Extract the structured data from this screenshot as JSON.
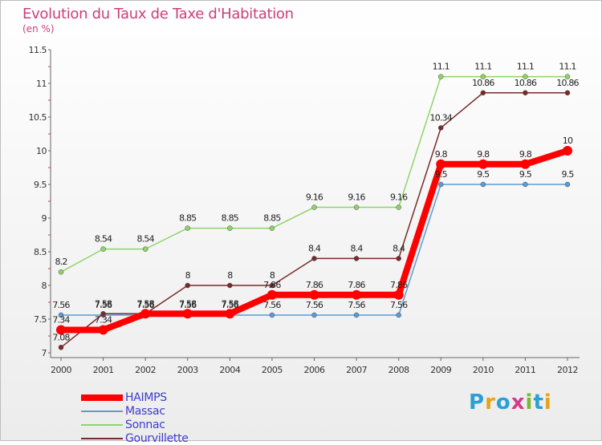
{
  "title": "Evolution du Taux de Taxe d'Habitation",
  "subtitle": "(en %)",
  "logo": {
    "letters": [
      "P",
      "r",
      "o",
      "x",
      "i",
      "t",
      "i"
    ],
    "colors": [
      "#2b9fd6",
      "#e8a317",
      "#2b9fd6",
      "#d23c8c",
      "#7cb82f",
      "#2b9fd6",
      "#e8a317"
    ]
  },
  "chart_data": {
    "type": "line",
    "x": [
      "2000",
      "2001",
      "2002",
      "2003",
      "2004",
      "2005",
      "2006",
      "2007",
      "2008",
      "2009",
      "2010",
      "2011",
      "2012"
    ],
    "ylim": [
      7,
      11.5
    ],
    "yticks": [
      "7",
      "7.5",
      "8",
      "8.5",
      "9",
      "9.5",
      "10",
      "10.5",
      "11",
      "11.5"
    ],
    "grid": false,
    "legend": "bottom-left",
    "series": [
      {
        "name": "Massac",
        "color": "#5b9bd5",
        "values": [
          7.56,
          7.56,
          7.56,
          7.56,
          7.56,
          7.56,
          7.56,
          7.56,
          7.56,
          9.5,
          9.5,
          9.5,
          9.5
        ],
        "labels": [
          "7.56",
          "7.56",
          "7.56",
          "7.56",
          "7.56",
          "7.56",
          "7.56",
          "7.56",
          "7.56",
          "9.5",
          "9.5",
          "9.5",
          "9.5"
        ]
      },
      {
        "name": "Sonnac",
        "color": "#8fd46b",
        "values": [
          8.2,
          8.54,
          8.54,
          8.85,
          8.85,
          8.85,
          9.16,
          9.16,
          9.16,
          11.1,
          11.1,
          11.1,
          11.1
        ],
        "labels": [
          "8.2",
          "8.54",
          "8.54",
          "8.85",
          "8.85",
          "8.85",
          "9.16",
          "9.16",
          "9.16",
          "11.1",
          "11.1",
          "11.1",
          "11.1"
        ]
      },
      {
        "name": "Gourvillette",
        "color": "#7a2a2a",
        "values": [
          7.08,
          7.58,
          7.58,
          8,
          8,
          8,
          8.4,
          8.4,
          8.4,
          10.34,
          10.86,
          10.86,
          10.86
        ],
        "labels": [
          "7.08",
          "7.58",
          "7.58",
          "8",
          "8",
          "8",
          "8.4",
          "8.4",
          "8.4",
          "10.34",
          "10.86",
          "10.86",
          "10.86"
        ]
      },
      {
        "name": "HAIMPS",
        "color": "#ff0000",
        "values": [
          7.34,
          7.34,
          7.58,
          7.58,
          7.58,
          7.86,
          7.86,
          7.86,
          7.86,
          9.8,
          9.8,
          9.8,
          10
        ],
        "labels": [
          "7.34",
          "7.34",
          "7.58",
          "7.58",
          "7.58",
          "7.86",
          "7.86",
          "7.86",
          "7.86",
          "9.8",
          "9.8",
          "9.8",
          "10"
        ]
      }
    ],
    "legend_order": [
      "HAIMPS",
      "Massac",
      "Sonnac",
      "Gourvillette"
    ]
  }
}
